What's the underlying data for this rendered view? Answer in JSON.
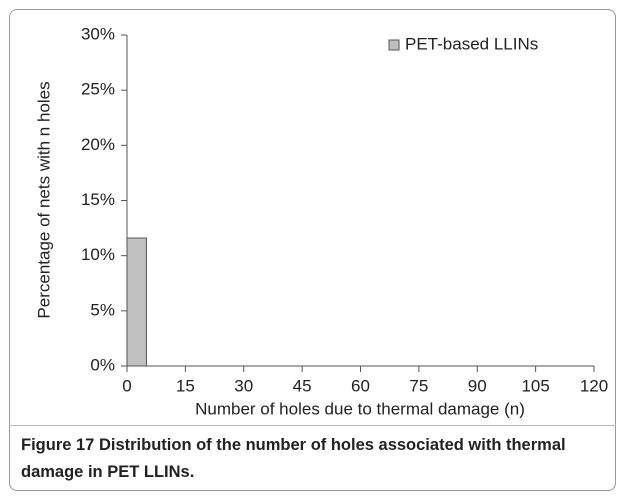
{
  "chart_data": {
    "type": "histogram",
    "xlabel": "Number of holes due to thermal damage  (n)",
    "ylabel": "Percentage of nets with n holes",
    "bins": [
      0,
      5
    ],
    "series": [
      {
        "name": "PET-based LLINs",
        "color": "#c0c0c0",
        "values": [
          11.6
        ]
      }
    ],
    "xlim": [
      0,
      120
    ],
    "xticks": [
      0,
      15,
      30,
      45,
      60,
      75,
      90,
      105,
      120
    ],
    "ylim": [
      0,
      30
    ],
    "yticks": [
      {
        "value": 0,
        "label": "0%"
      },
      {
        "value": 5,
        "label": "5%"
      },
      {
        "value": 10,
        "label": "10%"
      },
      {
        "value": 15,
        "label": "15%"
      },
      {
        "value": 20,
        "label": "20%"
      },
      {
        "value": 25,
        "label": "25%"
      },
      {
        "value": 30,
        "label": "30%"
      }
    ],
    "legend": "top-right",
    "grid": false
  },
  "caption_label": "Figure 17",
  "caption": "Distribution of the number of holes associated with thermal damage in PET LLINs."
}
